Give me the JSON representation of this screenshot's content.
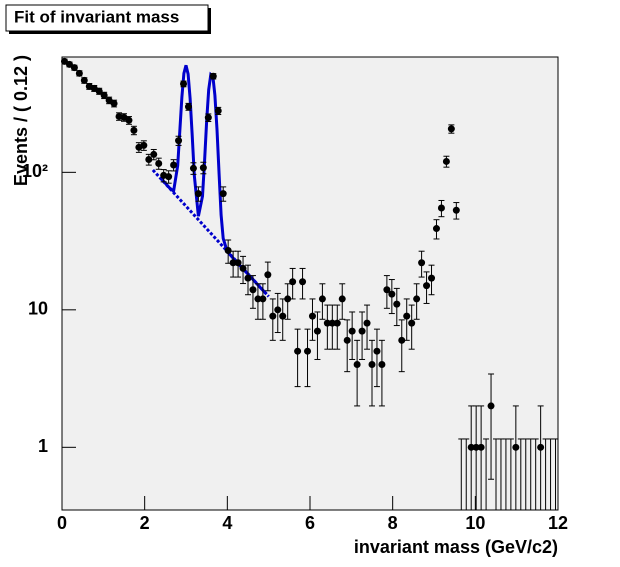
{
  "chart_data": {
    "type": "histogram-fit",
    "title": "Fit of invariant mass",
    "x_label": "invariant mass (GeV/c2)",
    "y_label": "Events / ( 0.12 )",
    "log_y": true,
    "xlim": [
      0,
      12
    ],
    "xticks": [
      0,
      2,
      4,
      6,
      8,
      10,
      12
    ],
    "ylim": [
      0.35,
      690
    ],
    "yticks": [
      1,
      10,
      {
        "value": 100,
        "label": "10²"
      }
    ],
    "x": [
      0.06,
      0.18,
      0.3,
      0.42,
      0.54,
      0.66,
      0.78,
      0.9,
      1.02,
      1.14,
      1.26,
      1.38,
      1.5,
      1.62,
      1.74,
      1.86,
      1.98,
      2.1,
      2.22,
      2.34,
      2.46,
      2.58,
      2.7,
      2.82,
      2.94,
      3.06,
      3.18,
      3.3,
      3.42,
      3.54,
      3.66,
      3.78,
      3.9,
      4.02,
      4.14,
      4.26,
      4.38,
      4.5,
      4.62,
      4.74,
      4.86,
      4.98,
      5.1,
      5.22,
      5.34,
      5.46,
      5.58,
      5.7,
      5.82,
      5.94,
      6.06,
      6.18,
      6.3,
      6.42,
      6.54,
      6.66,
      6.78,
      6.9,
      7.02,
      7.14,
      7.26,
      7.38,
      7.5,
      7.62,
      7.74,
      7.86,
      7.98,
      8.1,
      8.22,
      8.34,
      8.46,
      8.58,
      8.7,
      8.82,
      8.94,
      9.06,
      9.18,
      9.3,
      9.42,
      9.54,
      9.66,
      9.78,
      9.9,
      10.02,
      10.14,
      10.26,
      10.38,
      10.5,
      10.62,
      10.74,
      10.86,
      10.98,
      11.1,
      11.22,
      11.34,
      11.46,
      11.58,
      11.7,
      11.82,
      11.94
    ],
    "values": [
      641,
      610,
      577,
      525,
      466,
      422,
      408,
      389,
      363,
      334,
      317,
      255,
      251,
      239,
      202,
      152,
      157,
      124,
      135,
      116,
      95,
      93,
      113,
      170,
      440,
      300,
      107,
      70,
      108,
      250,
      500,
      280,
      70,
      27,
      22,
      22,
      20,
      17,
      14,
      12,
      12,
      18,
      9,
      10,
      9,
      12,
      16,
      5,
      16,
      5,
      9,
      7,
      12,
      8,
      8,
      8,
      12,
      6,
      7,
      4,
      7,
      8,
      4,
      5,
      4,
      14,
      13,
      11,
      6,
      9,
      8,
      12,
      22,
      15,
      17,
      39,
      55,
      120,
      207,
      53,
      0,
      0,
      1,
      1,
      1,
      0,
      2,
      0,
      0,
      0,
      0,
      1,
      0,
      0,
      0,
      0,
      1,
      0,
      0,
      0
    ],
    "color": "#000000",
    "fit": {
      "color": "#0000cc",
      "x": [
        2.4,
        2.6,
        2.7,
        2.8,
        2.85,
        2.9,
        2.95,
        3.0,
        3.05,
        3.1,
        3.15,
        3.2,
        3.3,
        3.4,
        3.45,
        3.5,
        3.55,
        3.6,
        3.65,
        3.7,
        3.75,
        3.8,
        3.85,
        3.9,
        4.0,
        4.2,
        4.4,
        4.6,
        4.8,
        4.95
      ],
      "values": [
        90,
        77,
        73,
        112,
        199,
        354,
        524,
        600,
        519,
        345,
        186,
        95,
        48,
        67,
        122,
        240,
        399,
        514,
        498,
        363,
        205,
        97,
        49,
        33,
        26.5,
        22.7,
        19.5,
        16.9,
        14.5,
        13
      ]
    },
    "background": {
      "color": "#0000cc",
      "x": [
        2.2,
        5.0
      ],
      "values": [
        104,
        12.5
      ]
    }
  }
}
